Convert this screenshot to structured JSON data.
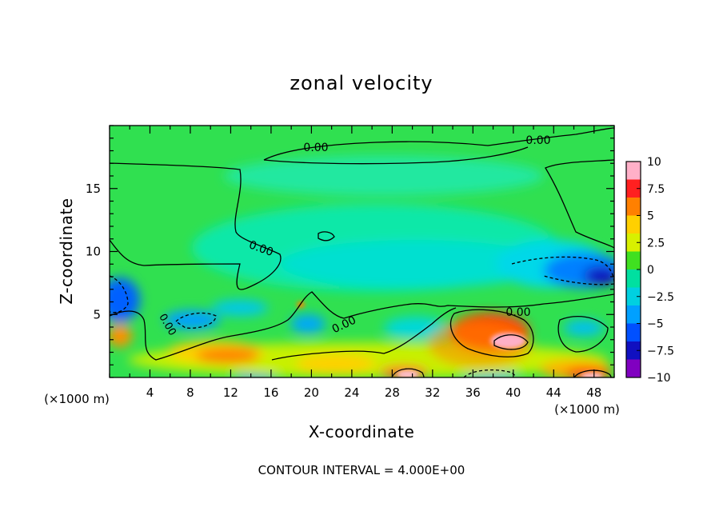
{
  "chart_data": {
    "type": "heatmap",
    "title": "zonal velocity",
    "xlabel": "X-coordinate",
    "ylabel": "Z-coordinate",
    "x_unit_left": "(×1000 m)",
    "x_unit_right": "(×1000 m)",
    "xlim": [
      0,
      50
    ],
    "ylim": [
      0,
      20
    ],
    "x_ticks": [
      4,
      8,
      12,
      16,
      20,
      24,
      28,
      32,
      36,
      40,
      44,
      48
    ],
    "y_ticks": [
      5,
      10,
      15
    ],
    "colorbar": {
      "ticks": [
        10,
        7.5,
        5,
        2.5,
        0,
        -2.5,
        -5,
        -7.5,
        -10
      ],
      "tick_labels": [
        "10",
        "7.5",
        "5",
        "2.5",
        "0",
        "−2.5",
        "−5",
        "−7.5",
        "−10"
      ],
      "colors": [
        "#ffb0c8",
        "#ff2020",
        "#ff8000",
        "#ffd000",
        "#d8f000",
        "#40e020",
        "#00e0a0",
        "#00d0e0",
        "#00a0ff",
        "#0050ff",
        "#1010c0",
        "#8000c0"
      ],
      "range": [
        -10,
        10
      ]
    },
    "contour_label": "0.00",
    "contour_interval_text": "CONTOUR INTERVAL = 4.000E+00",
    "background_color": "#30e050"
  }
}
